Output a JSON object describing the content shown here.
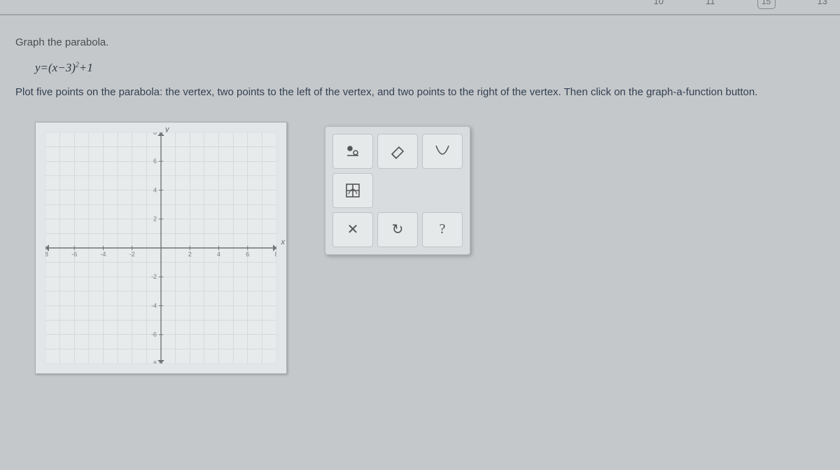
{
  "topbar": {
    "nums": [
      "10",
      "11",
      "13"
    ],
    "badge": "15"
  },
  "question": {
    "prompt": "Graph the parabola.",
    "equation_prefix": "y=(x−3)",
    "equation_sup": "2",
    "equation_suffix": "+1",
    "instruction": "Plot five points on the parabola: the vertex, two points to the left of the vertex, and two points to the right of the vertex. Then click on the graph-a-function button."
  },
  "graph": {
    "x_min": -8,
    "x_max": 8,
    "y_min": -8,
    "y_max": 8,
    "tick_step": 2,
    "grid_color": "#c6caca",
    "axis_color": "#6f7375",
    "tick_label_color": "#7a7e80",
    "y_label": "y",
    "x_label": "x"
  },
  "tools": {
    "row1": [
      {
        "name": "point-tool-icon",
        "kind": "point"
      },
      {
        "name": "eraser-tool-icon",
        "kind": "eraser"
      },
      {
        "name": "parabola-tool-icon",
        "kind": "curve"
      }
    ],
    "row2": [
      {
        "name": "graph-function-icon",
        "kind": "gridfx"
      },
      {
        "name": "",
        "kind": "empty"
      },
      {
        "name": "",
        "kind": "empty"
      }
    ],
    "row3": [
      {
        "name": "clear-button",
        "label": "✕"
      },
      {
        "name": "undo-button",
        "label": "↻"
      },
      {
        "name": "help-button",
        "label": "?"
      }
    ]
  }
}
